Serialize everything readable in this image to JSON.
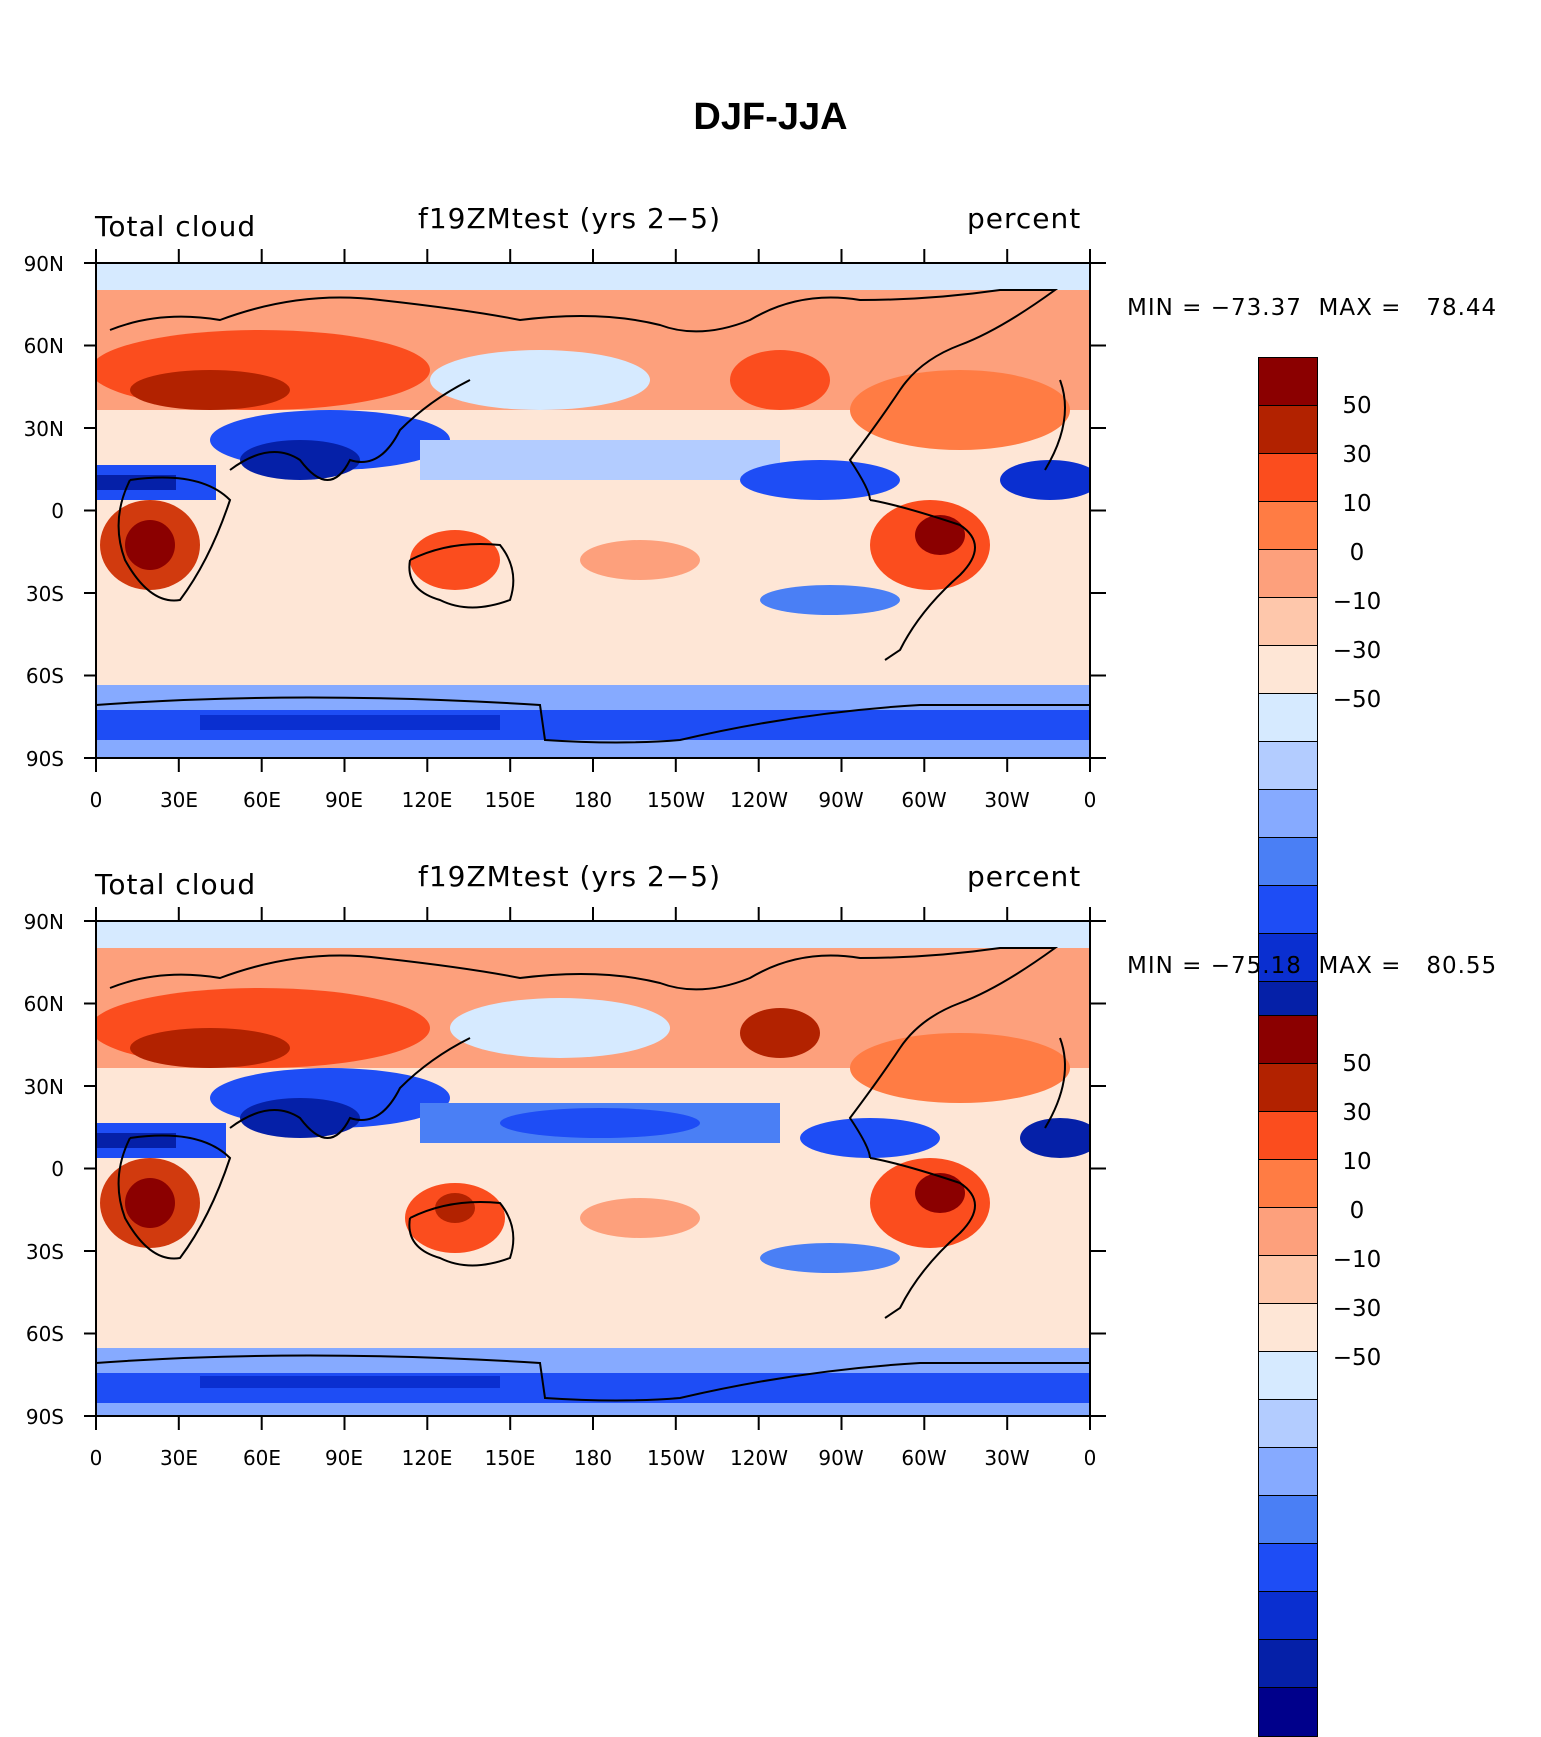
{
  "title": "DJF-JJA",
  "colorbar": {
    "colors": [
      "#8b0000",
      "#b22200",
      "#d13a0e",
      "#fb4d1e",
      "#ff7c44",
      "#fda07c",
      "#fec7ab",
      "#fee6d6",
      "#d6eaff",
      "#b3ccff",
      "#86aaff",
      "#4a7ff5",
      "#1e4df5",
      "#0a2fd0",
      "#0520a8",
      "#00008b"
    ],
    "labels": [
      "50",
      "30",
      "10",
      "0",
      "−10",
      "−30",
      "−50"
    ],
    "levels": [
      70,
      60,
      50,
      40,
      30,
      20,
      10,
      0,
      -10,
      -20,
      -30,
      -40,
      -50,
      -60,
      -70
    ]
  },
  "axes": {
    "y_ticks": [
      "90N",
      "60N",
      "30N",
      "0",
      "30S",
      "60S",
      "90S"
    ],
    "x_ticks": [
      "0",
      "30E",
      "60E",
      "90E",
      "120E",
      "150E",
      "180",
      "150W",
      "120W",
      "90W",
      "60W",
      "30W",
      "0"
    ]
  },
  "panels": [
    {
      "left_label": "Total cloud",
      "center_label": "f19ZMtest (yrs 2−5)",
      "right_label": "percent",
      "min_label": "MIN = ",
      "min_value": "−73.37",
      "max_label": "MAX = ",
      "max_value": "78.44",
      "min": -73.37,
      "max": 78.44
    },
    {
      "left_label": "Total cloud",
      "center_label": "f19ZMtest (yrs 2−5)",
      "right_label": "percent",
      "min_label": "MIN = ",
      "min_value": "−75.18",
      "max_label": "MAX = ",
      "max_value": "80.55",
      "min": -75.18,
      "max": 80.55
    }
  ]
}
